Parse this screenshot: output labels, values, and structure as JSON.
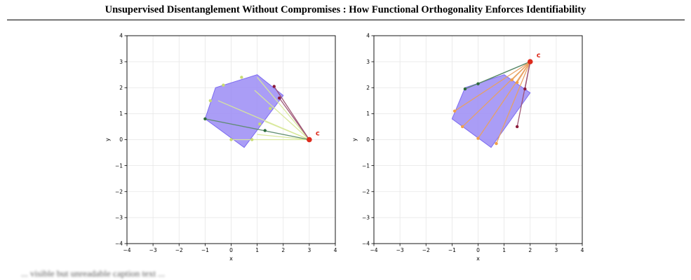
{
  "header": {
    "title": "Unsupervised Disentanglement Without Compromises : How Functional Orthogonality Enforces Identifiability"
  },
  "caption": {
    "text": "... visible but unreadable caption text ..."
  },
  "chart_data": [
    {
      "type": "scatter",
      "title": "",
      "xlabel": "x",
      "ylabel": "y",
      "xlim": [
        -4,
        4
      ],
      "ylim": [
        -4,
        4
      ],
      "xticks": [
        "−4",
        "−3",
        "−2",
        "−1",
        "0",
        "1",
        "2",
        "3",
        "4"
      ],
      "yticks": [
        "−4",
        "−3",
        "−2",
        "−1",
        "0",
        "1",
        "2",
        "3",
        "4"
      ],
      "grid": true,
      "polygon": {
        "vertices": [
          [
            0.5,
            -0.3
          ],
          [
            2.0,
            1.7
          ],
          [
            1.0,
            2.5
          ],
          [
            -0.6,
            2.0
          ],
          [
            -1.0,
            0.8
          ]
        ],
        "color": "#9b8cf5"
      },
      "point_c": {
        "x": 3.0,
        "y": 0.0,
        "label": "c",
        "color": "#dd2b1c"
      },
      "rays": [
        {
          "x": 1.0,
          "y": 2.4,
          "color": "#d8e89a"
        },
        {
          "x": 0.9,
          "y": 1.9,
          "color": "#d8e89a"
        },
        {
          "x": -0.5,
          "y": 1.5,
          "color": "#d8e89a"
        },
        {
          "x": 1.3,
          "y": 0.7,
          "color": "#d8e89a"
        },
        {
          "x": 1.0,
          "y": 0.2,
          "color": "#d8e89a"
        },
        {
          "x": 0.0,
          "y": 0.0,
          "color": "#d8e89a"
        },
        {
          "x": 1.65,
          "y": 2.05,
          "color": "#9c5272"
        },
        {
          "x": 1.85,
          "y": 1.6,
          "color": "#9c5272"
        },
        {
          "x": -1.0,
          "y": 0.8,
          "color": "#5c8a6b"
        }
      ],
      "points": [
        {
          "x": 1.65,
          "y": 2.05,
          "color": "#8b1a3a"
        },
        {
          "x": 1.85,
          "y": 1.6,
          "color": "#8b1a3a"
        },
        {
          "x": -1.0,
          "y": 0.8,
          "color": "#2e6b3a"
        },
        {
          "x": 1.3,
          "y": 0.35,
          "color": "#2e6b3a"
        },
        {
          "x": -0.3,
          "y": 2.1,
          "color": "#c8dc73"
        },
        {
          "x": 0.4,
          "y": 2.4,
          "color": "#c8dc73"
        },
        {
          "x": -0.8,
          "y": 1.5,
          "color": "#c8dc73"
        },
        {
          "x": 1.5,
          "y": 1.2,
          "color": "#c8dc73"
        },
        {
          "x": 1.1,
          "y": 0.6,
          "color": "#c8dc73"
        },
        {
          "x": 0.0,
          "y": 0.0,
          "color": "#c8dc73"
        },
        {
          "x": 0.8,
          "y": 0.0,
          "color": "#c8dc73"
        }
      ]
    },
    {
      "type": "scatter",
      "title": "",
      "xlabel": "x",
      "ylabel": "y",
      "xlim": [
        -4,
        4
      ],
      "ylim": [
        -4,
        4
      ],
      "xticks": [
        "−4",
        "−3",
        "−2",
        "−1",
        "0",
        "1",
        "2",
        "3",
        "4"
      ],
      "yticks": [
        "−4",
        "−3",
        "−2",
        "−1",
        "0",
        "1",
        "2",
        "3",
        "4"
      ],
      "grid": true,
      "polygon": {
        "vertices": [
          [
            0.5,
            -0.3
          ],
          [
            2.0,
            1.8
          ],
          [
            1.0,
            2.5
          ],
          [
            -0.5,
            2.0
          ],
          [
            -1.0,
            0.8
          ]
        ],
        "color": "#9b8cf5"
      },
      "point_c": {
        "x": 2.0,
        "y": 3.0,
        "label": "c",
        "color": "#dd2b1c"
      },
      "rays": [
        {
          "x": -0.5,
          "y": 1.95,
          "color": "#5c8a6b"
        },
        {
          "x": 0.0,
          "y": 2.15,
          "color": "#5c8a6b"
        },
        {
          "x": -0.9,
          "y": 1.1,
          "color": "#e8a060"
        },
        {
          "x": -0.6,
          "y": 0.5,
          "color": "#e8a060"
        },
        {
          "x": 0.0,
          "y": 0.05,
          "color": "#e8a060"
        },
        {
          "x": 0.7,
          "y": -0.15,
          "color": "#e8a060"
        },
        {
          "x": 1.3,
          "y": 2.3,
          "color": "#e8a060"
        },
        {
          "x": 1.5,
          "y": 2.2,
          "color": "#e8a060"
        },
        {
          "x": 1.5,
          "y": 0.5,
          "color": "#9c5272"
        },
        {
          "x": 1.8,
          "y": 1.95,
          "color": "#9c5272"
        }
      ],
      "points": [
        {
          "x": -0.5,
          "y": 1.95,
          "color": "#2e6b3a"
        },
        {
          "x": 0.0,
          "y": 2.15,
          "color": "#2e6b3a"
        },
        {
          "x": -0.9,
          "y": 1.1,
          "color": "#f0a04a"
        },
        {
          "x": -0.6,
          "y": 0.5,
          "color": "#f0a04a"
        },
        {
          "x": 0.0,
          "y": 0.05,
          "color": "#f0a04a"
        },
        {
          "x": 0.7,
          "y": -0.15,
          "color": "#f0a04a"
        },
        {
          "x": 1.3,
          "y": 2.3,
          "color": "#f0a04a"
        },
        {
          "x": 1.5,
          "y": 2.2,
          "color": "#f0a04a"
        },
        {
          "x": 1.5,
          "y": 0.5,
          "color": "#8b1a3a"
        },
        {
          "x": 1.8,
          "y": 1.95,
          "color": "#8b1a3a"
        }
      ]
    }
  ]
}
